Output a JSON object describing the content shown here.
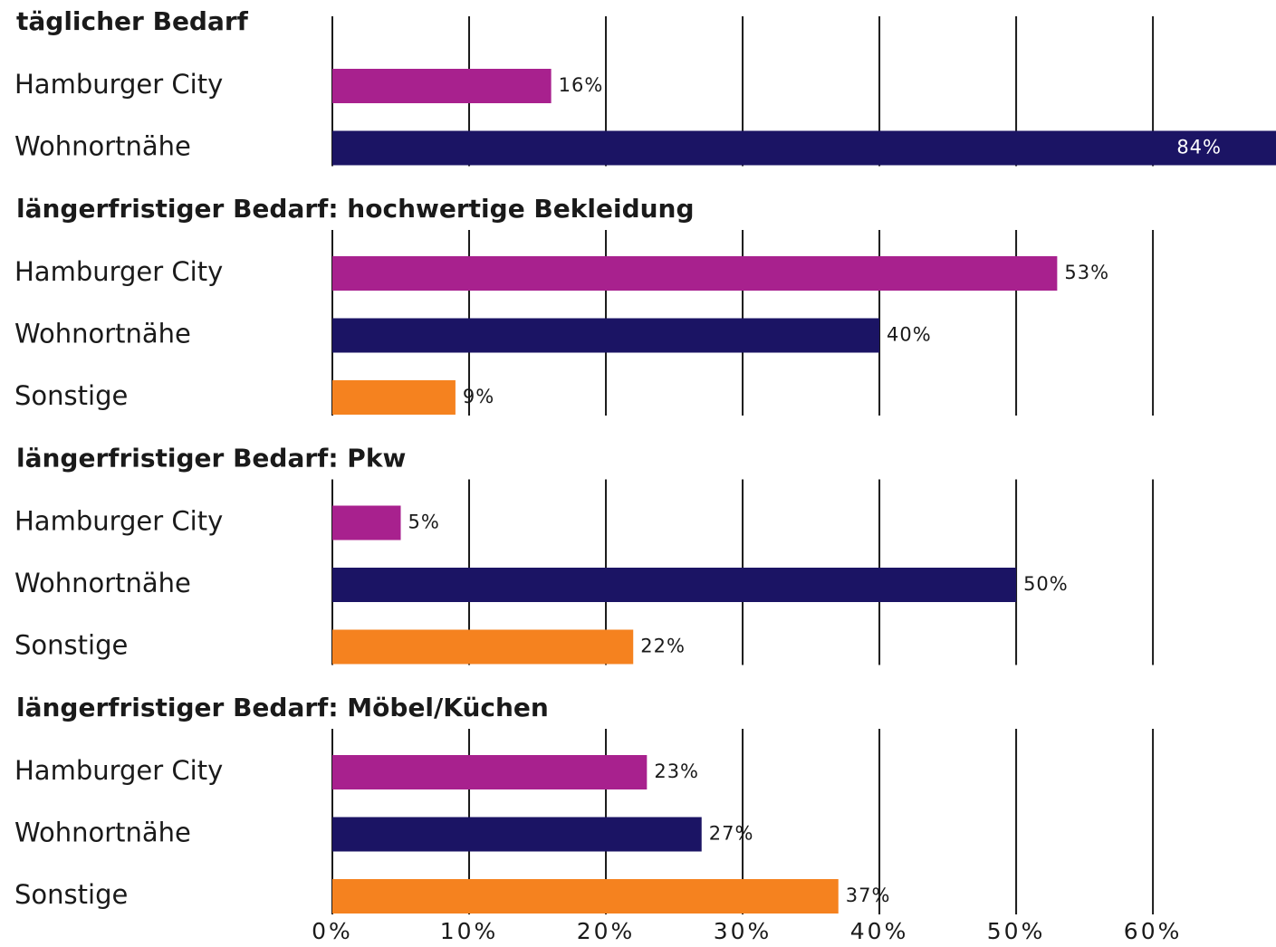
{
  "chart_data": {
    "type": "bar",
    "groups": [
      {
        "title": "täglicher Bedarf",
        "categories": [
          "Hamburger City",
          "Wohnortnähe"
        ],
        "values": [
          16,
          84
        ],
        "value_labels": [
          "16%",
          "84%"
        ],
        "colors": [
          "#a8218e",
          "#1b1464"
        ]
      },
      {
        "title": "längerfristiger Bedarf: hochwertige Bekleidung",
        "categories": [
          "Hamburger City",
          "Wohnortnähe",
          "Sonstige"
        ],
        "values": [
          53,
          40,
          9
        ],
        "value_labels": [
          "53%",
          "40%",
          "9%"
        ],
        "colors": [
          "#a8218e",
          "#1b1464",
          "#f5821f"
        ]
      },
      {
        "title": "längerfristiger Bedarf: Pkw",
        "categories": [
          "Hamburger City",
          "Wohnortnähe",
          "Sonstige"
        ],
        "values": [
          5,
          50,
          22
        ],
        "value_labels": [
          "5%",
          "50%",
          "22%"
        ],
        "colors": [
          "#a8218e",
          "#1b1464",
          "#f5821f"
        ]
      },
      {
        "title": "längerfristiger Bedarf: Möbel/Küchen",
        "categories": [
          "Hamburger City",
          "Wohnortnähe",
          "Sonstige"
        ],
        "values": [
          23,
          27,
          37
        ],
        "value_labels": [
          "23%",
          "27%",
          "37%"
        ],
        "colors": [
          "#a8218e",
          "#1b1464",
          "#f5821f"
        ]
      }
    ],
    "xlim": [
      0,
      69
    ],
    "xticks": [
      {
        "value": 0,
        "label": "0%"
      },
      {
        "value": 10,
        "label": "10%"
      },
      {
        "value": 20,
        "label": "20%"
      },
      {
        "value": 30,
        "label": "30%"
      },
      {
        "value": 40,
        "label": "40%"
      },
      {
        "value": 50,
        "label": "50%"
      },
      {
        "value": 60,
        "label": "60%"
      }
    ],
    "grid": true
  }
}
